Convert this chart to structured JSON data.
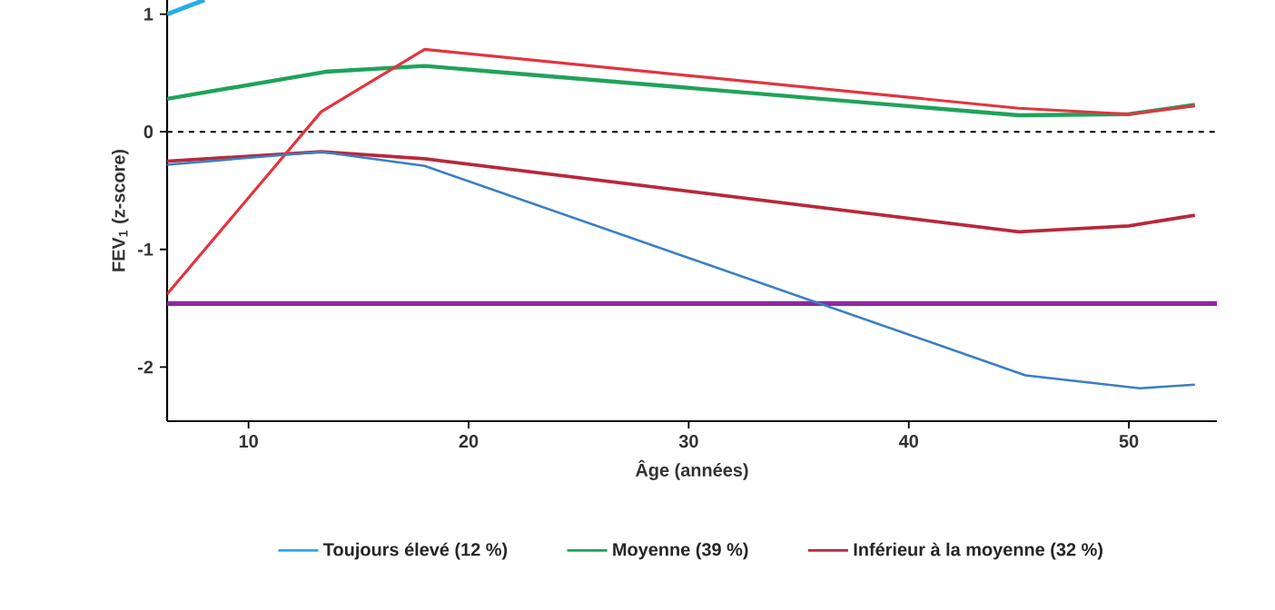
{
  "chart_data": {
    "type": "line",
    "xlabel": "Âge (années)",
    "ylabel": "FEV$_{1}$ (z-score)",
    "xlim": [
      6.3,
      54
    ],
    "ylim": [
      -2.46,
      1.12
    ],
    "xticks": [
      10,
      20,
      30,
      40,
      50
    ],
    "yticks": [
      -2,
      -1,
      0,
      1
    ],
    "grid": false,
    "legend": "bottom",
    "marker": "none",
    "line_style": "solid",
    "series": [
      {
        "name": "Toujours élevé (12 %)",
        "color": "#29abe2",
        "x": [
          6.3,
          8.0
        ],
        "values": [
          1.0,
          1.12
        ]
      },
      {
        "name": "Moyenne (39 %)",
        "color": "#1fa35a",
        "x": [
          6.3,
          13.5,
          18,
          45,
          50,
          53
        ],
        "values": [
          0.28,
          0.51,
          0.56,
          0.14,
          0.15,
          0.23
        ]
      },
      {
        "name": "Inférieur à la moyenne (32 %)",
        "color": "#b8283c",
        "x": [
          6.3,
          13.3,
          18,
          45,
          50,
          53
        ],
        "values": [
          -0.25,
          -0.17,
          -0.23,
          -0.85,
          -0.8,
          -0.71
        ]
      },
      {
        "color": "#e3343f",
        "x": [
          6.3,
          13.3,
          18,
          45,
          50,
          53
        ],
        "values": [
          -1.38,
          0.17,
          0.7,
          0.2,
          0.15,
          0.22
        ]
      },
      {
        "color": "#3a7fc4",
        "x": [
          6.3,
          13.3,
          18,
          45.3,
          50.5,
          53
        ],
        "values": [
          -0.28,
          -0.17,
          -0.29,
          -2.07,
          -2.18,
          -2.15
        ]
      }
    ],
    "ref_lines": [
      {
        "axis": "y",
        "value": 0,
        "color": "#000000",
        "line_style": "dashed"
      },
      {
        "axis": "y",
        "value": -1.46,
        "color": "#8b2a9a",
        "line_style": "solid"
      }
    ]
  }
}
